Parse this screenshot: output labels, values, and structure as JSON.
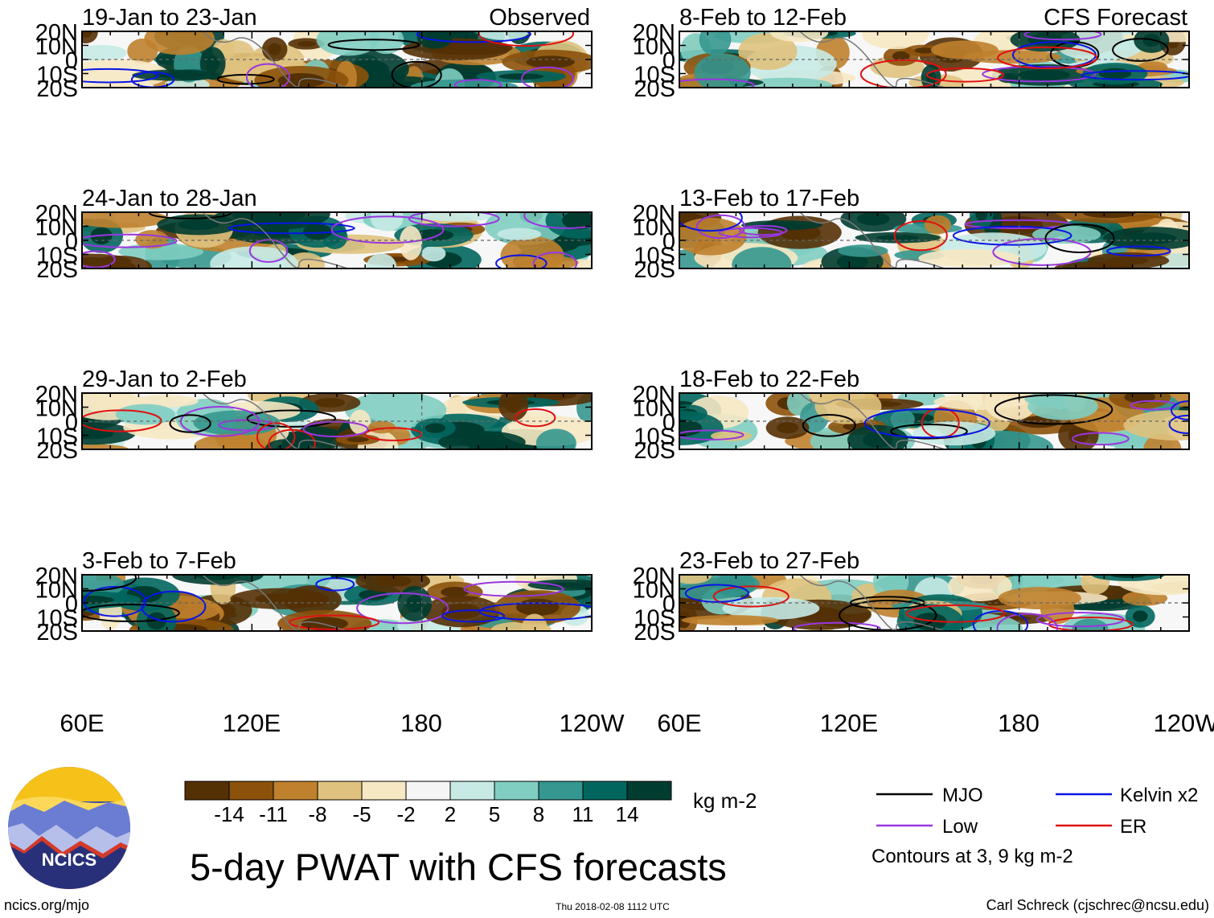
{
  "figure": {
    "main_title": "5-day PWAT with CFS forecasts",
    "observed_label": "Observed",
    "forecast_label": "CFS Forecast",
    "footer_left": "ncics.org/mjo",
    "footer_center": "Thu 2018-02-08 1112 UTC",
    "footer_right": "Carl Schreck (cjschrec@ncsu.edu)",
    "logo_text": "NCICS",
    "contour_note": "Contours at 3, 9 kg m-2"
  },
  "chart_data": {
    "type": "heatmap",
    "variable": "Precipitable water (PWAT) anomaly, 5-day mean",
    "units": "kg m-2",
    "lon_range": [
      60,
      240
    ],
    "lat_range": [
      -20,
      20
    ],
    "y_ticks": [
      "20N",
      "10N",
      "0",
      "10S",
      "20S"
    ],
    "x_ticks": [
      "60E",
      "120E",
      "180",
      "120W"
    ],
    "panels": [
      {
        "title": "19-Jan to 23-Jan",
        "column": "left",
        "kind": "Observed"
      },
      {
        "title": "24-Jan to 28-Jan",
        "column": "left",
        "kind": "Observed"
      },
      {
        "title": "29-Jan to 2-Feb",
        "column": "left",
        "kind": "Observed"
      },
      {
        "title": "3-Feb to 7-Feb",
        "column": "left",
        "kind": "Observed"
      },
      {
        "title": "8-Feb to 12-Feb",
        "column": "right",
        "kind": "CFS Forecast"
      },
      {
        "title": "13-Feb to 17-Feb",
        "column": "right",
        "kind": "CFS Forecast"
      },
      {
        "title": "18-Feb to 22-Feb",
        "column": "right",
        "kind": "CFS Forecast"
      },
      {
        "title": "23-Feb to 27-Feb",
        "column": "right",
        "kind": "CFS Forecast"
      }
    ],
    "colorbar": {
      "colors": [
        "#543005",
        "#8c510a",
        "#bf812d",
        "#dfc27d",
        "#f6e8c3",
        "#f5f5f5",
        "#c7eae5",
        "#80cdc1",
        "#35978f",
        "#01665e",
        "#003c30"
      ],
      "labels": [
        "-14",
        "-11",
        "-8",
        "-5",
        "-2",
        "2",
        "5",
        "8",
        "11",
        "14"
      ],
      "units_label": "kg m-2"
    },
    "legend": [
      {
        "name": "MJO",
        "color": "#000000"
      },
      {
        "name": "Kelvin x2",
        "color": "#0a14e6"
      },
      {
        "name": "Low",
        "color": "#9a36e0"
      },
      {
        "name": "ER",
        "color": "#e01010"
      }
    ]
  }
}
